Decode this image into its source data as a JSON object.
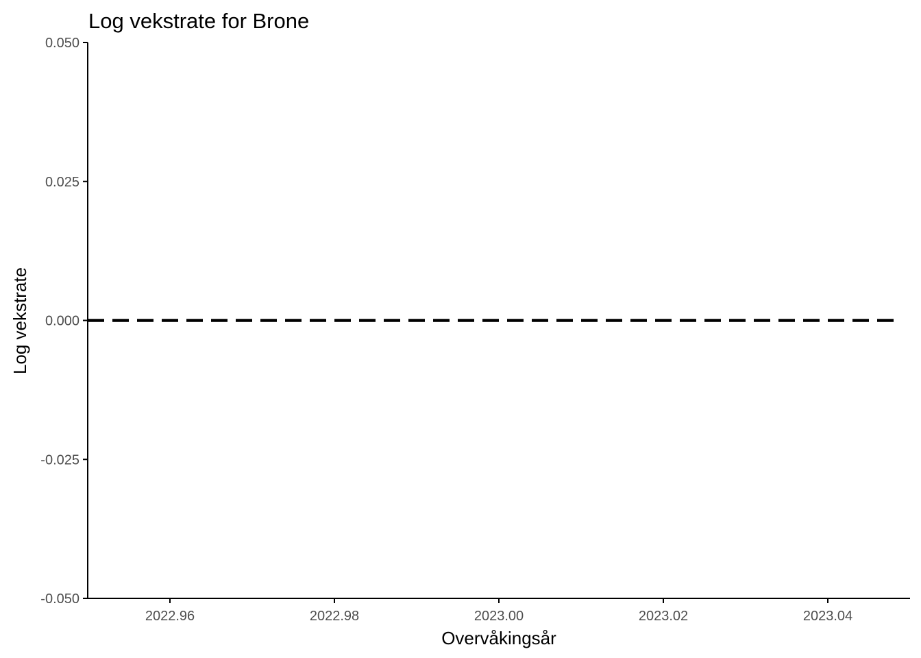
{
  "chart_data": {
    "type": "line",
    "title": "Log vekstrate for Brone",
    "xlabel": "Overvåkingsår",
    "ylabel": "Log vekstrate",
    "xlim": [
      2022.95,
      2023.05
    ],
    "ylim": [
      -0.05,
      0.05
    ],
    "x_ticks": [
      {
        "value": 2022.96,
        "label": "2022.96"
      },
      {
        "value": 2022.98,
        "label": "2022.98"
      },
      {
        "value": 2023.0,
        "label": "2023.00"
      },
      {
        "value": 2023.02,
        "label": "2023.02"
      },
      {
        "value": 2023.04,
        "label": "2023.04"
      }
    ],
    "y_ticks": [
      {
        "value": 0.05,
        "label": "0.050"
      },
      {
        "value": 0.025,
        "label": "0.025"
      },
      {
        "value": 0.0,
        "label": "0.000"
      },
      {
        "value": -0.025,
        "label": "-0.025"
      },
      {
        "value": -0.05,
        "label": "-0.050"
      }
    ],
    "series": [],
    "reference_lines": [
      {
        "orientation": "horizontal",
        "y": 0.0,
        "style": "dashed",
        "color": "#000000"
      }
    ],
    "grid": false,
    "legend": "none",
    "colors": {
      "axis": "#000000",
      "tick_label": "#4d4d4d",
      "text": "#000000",
      "reference_line": "#000000"
    }
  }
}
